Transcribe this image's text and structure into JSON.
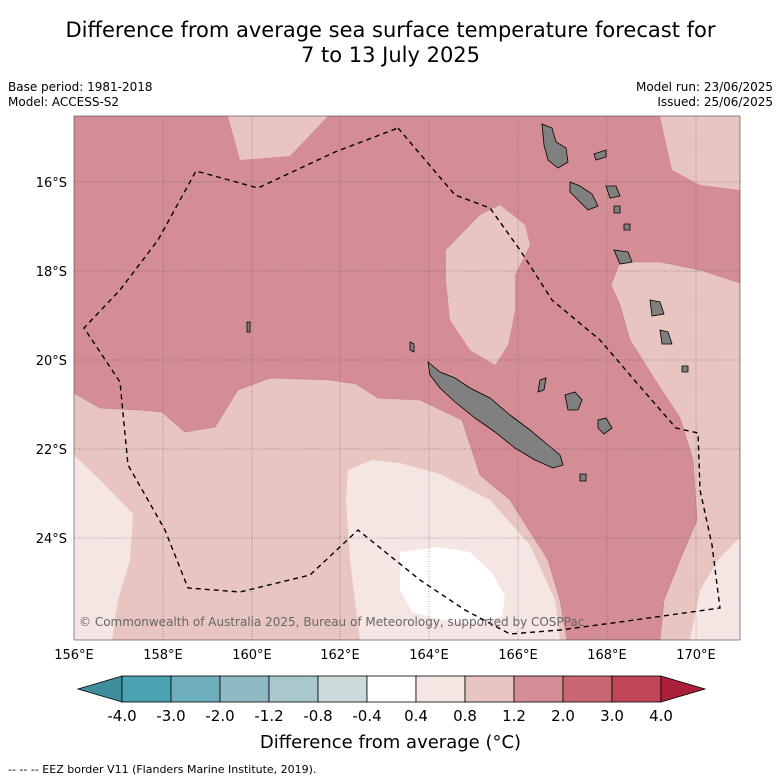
{
  "title_line1": "Difference from average sea surface temperature forecast for",
  "title_line2": "7 to 13 July 2025",
  "meta_left": [
    "Base period: 1981-2018",
    "Model: ACCESS-S2"
  ],
  "meta_right": [
    "Model run: 23/06/2025",
    "Issued: 25/06/2025"
  ],
  "copyright": "© Commonwealth of Australia 2025, Bureau of Meteorology, supported by COSPPac",
  "lon_ticks": [
    "156°E",
    "158°E",
    "160°E",
    "162°E",
    "164°E",
    "166°E",
    "168°E",
    "170°E"
  ],
  "lat_ticks": [
    "16°S",
    "18°S",
    "20°S",
    "22°S",
    "24°S"
  ],
  "colorbar": {
    "title": "Difference from average (°C)",
    "labels": [
      "-4.0",
      "-3.0",
      "-2.0",
      "-1.2",
      "-0.8",
      "-0.4",
      "0.4",
      "0.8",
      "1.2",
      "2.0",
      "3.0",
      "4.0"
    ],
    "colors": [
      "#3d8d9b",
      "#4aa3b2",
      "#6eadbb",
      "#8fbac4",
      "#a9c8cc",
      "#cbdadb",
      "#ffffff",
      "#f5e6e4",
      "#e8c5c0",
      "#d58d95",
      "#c96673",
      "#bf4557",
      "#ab1f3a"
    ]
  },
  "footer": "-- -- -- EEZ border V11 (Flanders Marine Institute, 2019)."
}
